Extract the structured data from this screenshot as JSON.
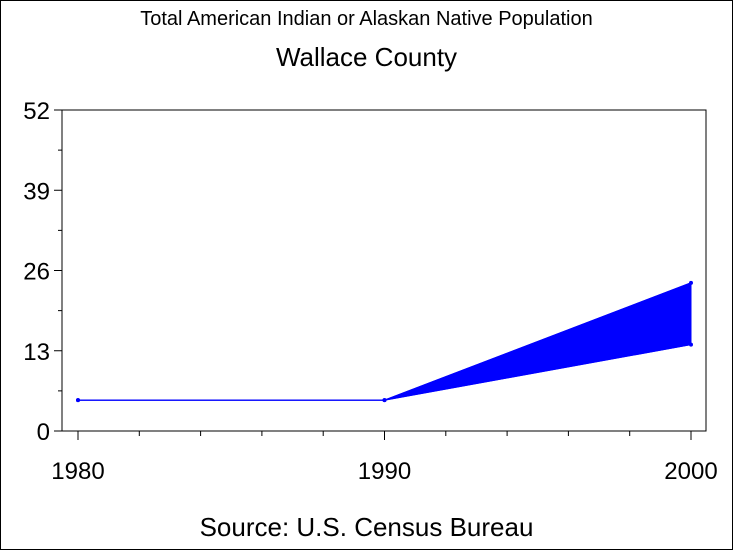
{
  "chart_data": {
    "type": "area",
    "title": "Total American Indian or Alaskan Native Population",
    "subtitle": "Wallace County",
    "source": "Source: U.S. Census Bureau",
    "x": [
      1980,
      1990,
      2000
    ],
    "x_ticks": [
      "1980",
      "1990",
      "2000"
    ],
    "y_ticks": [
      "0",
      "13",
      "26",
      "39",
      "52"
    ],
    "ylim": [
      0,
      52
    ],
    "xlim": [
      1980,
      2000
    ],
    "band": {
      "upper": [
        5,
        5,
        24
      ],
      "lower": [
        5,
        5,
        14
      ]
    },
    "grid": false,
    "color": "#0000ff"
  }
}
